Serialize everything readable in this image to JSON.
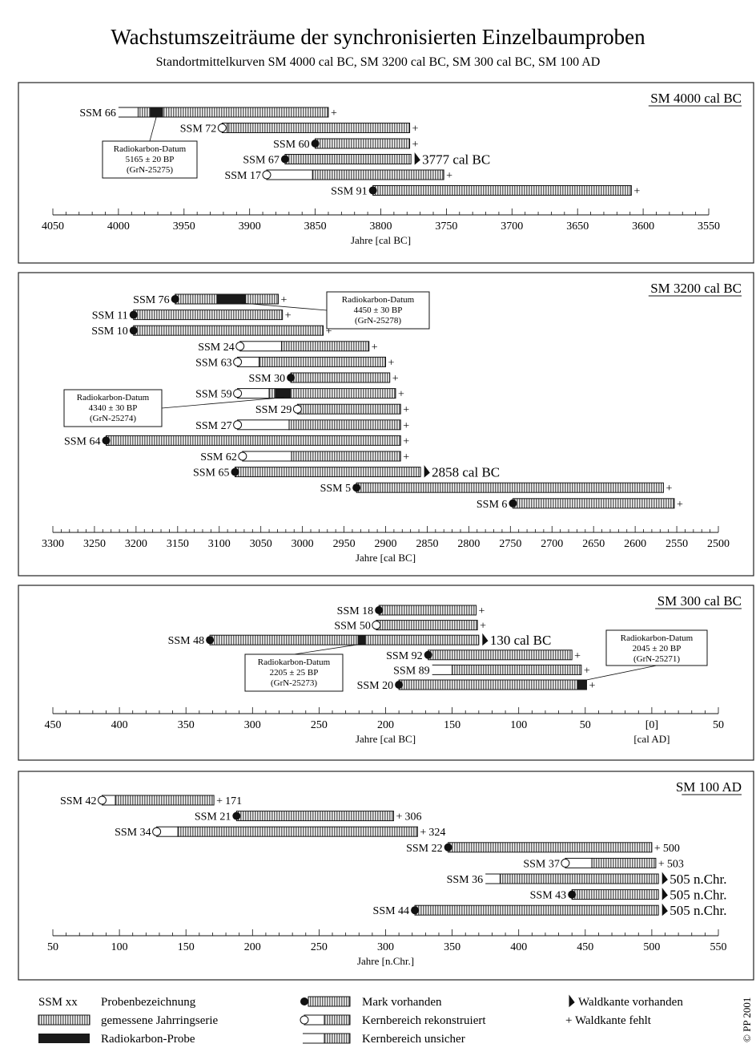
{
  "title": "Wachstumszeiträume der synchronisierten Einzelbaumproben",
  "subtitle": "Standortmittelkurven SM 4000 cal BC, SM 3200 cal BC, SM 300 cal BC, SM 100 AD",
  "copyright": "© PP 2001",
  "chart_data": [
    {
      "type": "bar",
      "title": "SM 4000 cal BC",
      "xlabel": "Jahre [cal BC]",
      "xlabel_right": "",
      "xlim": [
        4050,
        3550
      ],
      "reversed": true,
      "major_ticks": [
        4050,
        4000,
        3950,
        3900,
        3850,
        3800,
        3750,
        3700,
        3650,
        3600,
        3550
      ],
      "tick_labels": [
        "4050",
        "4000",
        "3950",
        "3900",
        "3850",
        "3800",
        "3750",
        "3700",
        "3650",
        "3600",
        "3550"
      ],
      "samples": [
        {
          "label": "SSM 66",
          "start": 4000,
          "meas_start": 3985,
          "end": 3840,
          "start_marker": "none",
          "uncertain": true,
          "end_marker": "plus",
          "end_label": "",
          "radiocarbon": [
            3976,
            3966
          ]
        },
        {
          "label": "SSM 72",
          "start": 3921,
          "meas_start": 3917,
          "end": 3778,
          "start_marker": "empty",
          "uncertain": false,
          "end_marker": "plus",
          "end_label": "",
          "radiocarbon": null
        },
        {
          "label": "SSM 60",
          "start": 3850,
          "meas_start": 3850,
          "end": 3778,
          "start_marker": "filled",
          "uncertain": false,
          "end_marker": "plus",
          "end_label": "",
          "radiocarbon": null
        },
        {
          "label": "SSM 67",
          "start": 3873,
          "meas_start": 3873,
          "end": 3777,
          "start_marker": "filled",
          "uncertain": false,
          "end_marker": "waldkante",
          "end_label": "3777 cal BC",
          "radiocarbon": null
        },
        {
          "label": "SSM 17",
          "start": 3887,
          "meas_start": 3852,
          "end": 3752,
          "start_marker": "empty",
          "uncertain": false,
          "end_marker": "plus",
          "end_label": "",
          "radiocarbon": null
        },
        {
          "label": "SSM 91",
          "start": 3806,
          "meas_start": 3806,
          "end": 3609,
          "start_marker": "filled",
          "uncertain": false,
          "end_marker": "plus",
          "end_label": "",
          "radiocarbon": null
        }
      ],
      "annotations": [
        {
          "lines": [
            "Radiokarbon-Datum",
            "5165 ± 20 BP",
            "(GrN-25275)"
          ],
          "target_sample": 0,
          "target_year": 3971
        }
      ]
    },
    {
      "type": "bar",
      "title": "SM 3200 cal BC",
      "xlabel": "Jahre [cal BC]",
      "xlabel_right": "",
      "xlim": [
        3300,
        2500
      ],
      "reversed": true,
      "major_ticks": [
        3300,
        3250,
        3200,
        3150,
        3100,
        3050,
        3000,
        2950,
        2900,
        2850,
        2800,
        2750,
        2700,
        2650,
        2600,
        2550,
        2500
      ],
      "tick_labels": [
        "3300",
        "3250",
        "3200",
        "3150",
        "3100",
        "3050",
        "3000",
        "2950",
        "2900",
        "2850",
        "2800",
        "2750",
        "2700",
        "2650",
        "2600",
        "2550",
        "2500"
      ],
      "samples": [
        {
          "label": "SSM 76",
          "start": 3153,
          "meas_start": 3153,
          "end": 3029,
          "start_marker": "filled",
          "uncertain": false,
          "end_marker": "plus",
          "end_label": "",
          "radiocarbon": [
            3103,
            3068
          ]
        },
        {
          "label": "SSM 11",
          "start": 3203,
          "meas_start": 3203,
          "end": 3024,
          "start_marker": "filled",
          "uncertain": false,
          "end_marker": "plus",
          "end_label": "",
          "radiocarbon": null
        },
        {
          "label": "SSM 10",
          "start": 3203,
          "meas_start": 3203,
          "end": 2975,
          "start_marker": "filled",
          "uncertain": false,
          "end_marker": "plus",
          "end_label": "",
          "radiocarbon": null
        },
        {
          "label": "SSM 24",
          "start": 3075,
          "meas_start": 3025,
          "end": 2920,
          "start_marker": "empty",
          "uncertain": false,
          "end_marker": "plus",
          "end_label": "",
          "radiocarbon": null
        },
        {
          "label": "SSM 63",
          "start": 3078,
          "meas_start": 3052,
          "end": 2900,
          "start_marker": "empty",
          "uncertain": false,
          "end_marker": "plus",
          "end_label": "",
          "radiocarbon": null
        },
        {
          "label": "SSM 30",
          "start": 3014,
          "meas_start": 3014,
          "end": 2895,
          "start_marker": "filled",
          "uncertain": false,
          "end_marker": "plus",
          "end_label": "",
          "radiocarbon": null
        },
        {
          "label": "SSM 59",
          "start": 3078,
          "meas_start": 3040,
          "end": 2888,
          "start_marker": "empty",
          "uncertain": false,
          "end_marker": "plus",
          "end_label": "",
          "radiocarbon": [
            3033,
            3014
          ]
        },
        {
          "label": "SSM 29",
          "start": 3006,
          "meas_start": 3006,
          "end": 2882,
          "start_marker": "empty",
          "uncertain": false,
          "end_marker": "plus",
          "end_label": "",
          "radiocarbon": null
        },
        {
          "label": "SSM 27",
          "start": 3078,
          "meas_start": 3016,
          "end": 2882,
          "start_marker": "empty",
          "uncertain": false,
          "end_marker": "plus",
          "end_label": "",
          "radiocarbon": null
        },
        {
          "label": "SSM 64",
          "start": 3236,
          "meas_start": 3236,
          "end": 2882,
          "start_marker": "filled",
          "uncertain": false,
          "end_marker": "plus",
          "end_label": "",
          "radiocarbon": null
        },
        {
          "label": "SSM 62",
          "start": 3072,
          "meas_start": 3013,
          "end": 2882,
          "start_marker": "empty",
          "uncertain": false,
          "end_marker": "plus",
          "end_label": "",
          "radiocarbon": null
        },
        {
          "label": "SSM 65",
          "start": 3081,
          "meas_start": 3081,
          "end": 2858,
          "start_marker": "filled",
          "uncertain": false,
          "end_marker": "waldkante",
          "end_label": "2858 cal BC",
          "radiocarbon": null
        },
        {
          "label": "SSM 5",
          "start": 2935,
          "meas_start": 2935,
          "end": 2566,
          "start_marker": "filled",
          "uncertain": false,
          "end_marker": "plus",
          "end_label": "",
          "radiocarbon": null
        },
        {
          "label": "SSM 6",
          "start": 2747,
          "meas_start": 2747,
          "end": 2553,
          "start_marker": "filled",
          "uncertain": false,
          "end_marker": "plus",
          "end_label": "",
          "radiocarbon": null
        }
      ],
      "annotations": [
        {
          "lines": [
            "Radiokarbon-Datum",
            "4450 ± 30 BP",
            "(GrN-25278)"
          ],
          "target_sample": 0,
          "target_year": 3073
        },
        {
          "lines": [
            "Radiokarbon-Datum",
            "4340 ± 30 BP",
            "(GrN-25274)"
          ],
          "target_sample": 6,
          "target_year": 3022
        }
      ]
    },
    {
      "type": "bar",
      "title": "SM 300 cal BC",
      "xlabel": "Jahre [cal BC]",
      "xlabel_right": "[cal AD]",
      "xlim": [
        450,
        -50
      ],
      "reversed": true,
      "major_ticks": [
        450,
        400,
        350,
        300,
        250,
        200,
        150,
        100,
        50,
        0,
        -50
      ],
      "tick_labels": [
        "450",
        "400",
        "350",
        "300",
        "250",
        "200",
        "150",
        "100",
        "50",
        "[0]",
        "50"
      ],
      "samples": [
        {
          "label": "SSM 18",
          "start": 205,
          "meas_start": 205,
          "end": 132,
          "start_marker": "filled",
          "uncertain": false,
          "end_marker": "plus",
          "end_label": "",
          "radiocarbon": null
        },
        {
          "label": "SSM 50",
          "start": 207,
          "meas_start": 207,
          "end": 131,
          "start_marker": "empty",
          "uncertain": false,
          "end_marker": "plus",
          "end_label": "",
          "radiocarbon": null
        },
        {
          "label": "SSM 48",
          "start": 332,
          "meas_start": 332,
          "end": 130,
          "start_marker": "filled",
          "uncertain": false,
          "end_marker": "waldkante",
          "end_label": "130 cal BC",
          "radiocarbon": [
            221,
            215
          ]
        },
        {
          "label": "SSM 92",
          "start": 168,
          "meas_start": 168,
          "end": 60,
          "start_marker": "filled",
          "uncertain": false,
          "end_marker": "plus",
          "end_label": "",
          "radiocarbon": null
        },
        {
          "label": "SSM 89",
          "start": 165,
          "meas_start": 150,
          "end": 53,
          "start_marker": "none",
          "uncertain": true,
          "end_marker": "plus",
          "end_label": "",
          "radiocarbon": null
        },
        {
          "label": "SSM 20",
          "start": 190,
          "meas_start": 190,
          "end": 49,
          "start_marker": "filled",
          "uncertain": false,
          "end_marker": "plus",
          "end_label": "",
          "radiocarbon": [
            56,
            49
          ]
        }
      ],
      "annotations": [
        {
          "lines": [
            "Radiokarbon-Datum",
            "2205 ± 25 BP",
            "(GrN-25273)"
          ],
          "target_sample": 2,
          "target_year": 218
        },
        {
          "lines": [
            "Radiokarbon-Datum",
            "2045 ± 20 BP",
            "(GrN-25271)"
          ],
          "target_sample": 5,
          "target_year": 52
        }
      ]
    },
    {
      "type": "bar",
      "title": "SM 100 AD",
      "xlabel": "Jahre [n.Chr.]",
      "xlabel_right": "",
      "xlim": [
        50,
        550
      ],
      "reversed": false,
      "major_ticks": [
        50,
        100,
        150,
        200,
        250,
        300,
        350,
        400,
        450,
        500,
        550
      ],
      "tick_labels": [
        "50",
        "100",
        "150",
        "200",
        "250",
        "300",
        "350",
        "400",
        "450",
        "500",
        "550"
      ],
      "samples": [
        {
          "label": "SSM 42",
          "start": 87,
          "meas_start": 97,
          "end": 171,
          "start_marker": "empty",
          "uncertain": false,
          "end_marker": "plus",
          "end_label": "171",
          "radiocarbon": null
        },
        {
          "label": "SSM 21",
          "start": 188,
          "meas_start": 188,
          "end": 306,
          "start_marker": "filled",
          "uncertain": false,
          "end_marker": "plus",
          "end_label": "306",
          "radiocarbon": null
        },
        {
          "label": "SSM 34",
          "start": 128,
          "meas_start": 144,
          "end": 324,
          "start_marker": "empty",
          "uncertain": false,
          "end_marker": "plus",
          "end_label": "324",
          "radiocarbon": null
        },
        {
          "label": "SSM 22",
          "start": 347,
          "meas_start": 347,
          "end": 500,
          "start_marker": "filled",
          "uncertain": false,
          "end_marker": "plus",
          "end_label": "500",
          "radiocarbon": null
        },
        {
          "label": "SSM 37",
          "start": 435,
          "meas_start": 455,
          "end": 503,
          "start_marker": "empty",
          "uncertain": false,
          "end_marker": "plus",
          "end_label": "503",
          "radiocarbon": null
        },
        {
          "label": "SSM 36",
          "start": 375,
          "meas_start": 386,
          "end": 505,
          "start_marker": "none",
          "uncertain": true,
          "end_marker": "waldkante",
          "end_label": "505 n.Chr.",
          "radiocarbon": null
        },
        {
          "label": "SSM 43",
          "start": 440,
          "meas_start": 440,
          "end": 505,
          "start_marker": "filled",
          "uncertain": false,
          "end_marker": "waldkante",
          "end_label": "505 n.Chr.",
          "radiocarbon": null
        },
        {
          "label": "SSM 44",
          "start": 322,
          "meas_start": 322,
          "end": 505,
          "start_marker": "filled",
          "uncertain": false,
          "end_marker": "waldkante",
          "end_label": "505 n.Chr.",
          "radiocarbon": null
        }
      ],
      "annotations": []
    }
  ],
  "legend": {
    "items": [
      {
        "key": "ssm",
        "symbol": "SSM xx",
        "label": "Probenbezeichnung"
      },
      {
        "key": "measured",
        "label": "gemessene Jahrringserie"
      },
      {
        "key": "radiocarbon",
        "label": "Radiokarbon-Probe"
      },
      {
        "key": "mark",
        "label": "Mark vorhanden"
      },
      {
        "key": "reconstructed",
        "label": "Kernbereich rekonstruiert"
      },
      {
        "key": "uncertain",
        "label": "Kernbereich unsicher"
      },
      {
        "key": "waldkante",
        "label": "Waldkante vorhanden"
      },
      {
        "key": "plus",
        "label": "+ Waldkante fehlt"
      }
    ]
  }
}
